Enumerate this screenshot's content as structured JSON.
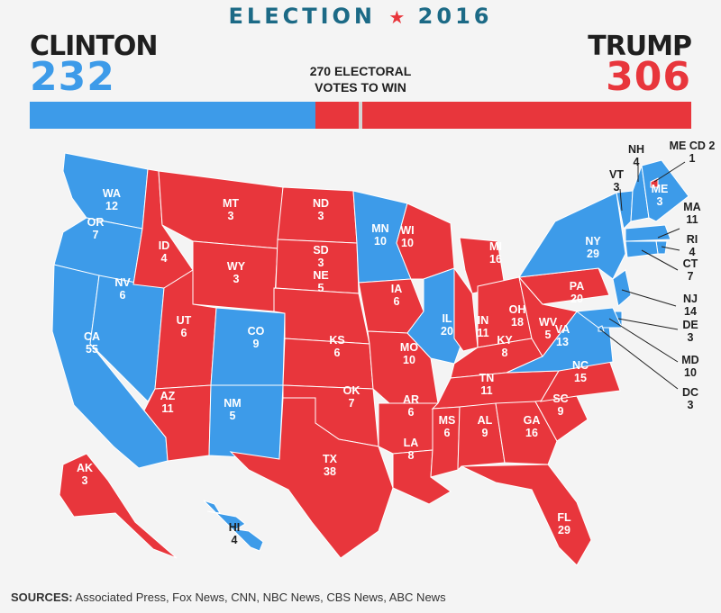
{
  "title": {
    "left": "ELECTION",
    "right": "2016"
  },
  "colors": {
    "dem": "#3d9be9",
    "rep": "#e8363c",
    "title": "#1c6a86",
    "border": "#ffffff"
  },
  "clinton": {
    "name": "CLINTON",
    "votes": "232",
    "ev": 232
  },
  "trump": {
    "name": "TRUMP",
    "votes": "306",
    "ev": 306
  },
  "threshold": {
    "line1": "270 ELECTORAL",
    "line2": "VOTES TO WIN",
    "total": 538
  },
  "sources": {
    "label": "SOURCES:",
    "text": " Associated Press, Fox News, CNN, NBC News, CBS News, ABC News"
  },
  "states": [
    {
      "abbr": "WA",
      "ev": "12",
      "winner": "dem"
    },
    {
      "abbr": "OR",
      "ev": "7",
      "winner": "dem"
    },
    {
      "abbr": "CA",
      "ev": "55",
      "winner": "dem"
    },
    {
      "abbr": "NV",
      "ev": "6",
      "winner": "dem"
    },
    {
      "abbr": "ID",
      "ev": "4",
      "winner": "rep"
    },
    {
      "abbr": "MT",
      "ev": "3",
      "winner": "rep"
    },
    {
      "abbr": "WY",
      "ev": "3",
      "winner": "rep"
    },
    {
      "abbr": "UT",
      "ev": "6",
      "winner": "rep"
    },
    {
      "abbr": "AZ",
      "ev": "11",
      "winner": "rep"
    },
    {
      "abbr": "CO",
      "ev": "9",
      "winner": "dem"
    },
    {
      "abbr": "NM",
      "ev": "5",
      "winner": "dem"
    },
    {
      "abbr": "ND",
      "ev": "3",
      "winner": "rep"
    },
    {
      "abbr": "SD",
      "ev": "3",
      "winner": "rep"
    },
    {
      "abbr": "NE",
      "ev": "5",
      "winner": "rep"
    },
    {
      "abbr": "KS",
      "ev": "6",
      "winner": "rep"
    },
    {
      "abbr": "OK",
      "ev": "7",
      "winner": "rep"
    },
    {
      "abbr": "TX",
      "ev": "38",
      "winner": "rep"
    },
    {
      "abbr": "MN",
      "ev": "10",
      "winner": "dem"
    },
    {
      "abbr": "IA",
      "ev": "6",
      "winner": "rep"
    },
    {
      "abbr": "MO",
      "ev": "10",
      "winner": "rep"
    },
    {
      "abbr": "AR",
      "ev": "6",
      "winner": "rep"
    },
    {
      "abbr": "LA",
      "ev": "8",
      "winner": "rep"
    },
    {
      "abbr": "WI",
      "ev": "10",
      "winner": "rep"
    },
    {
      "abbr": "IL",
      "ev": "20",
      "winner": "dem"
    },
    {
      "abbr": "MI",
      "ev": "16",
      "winner": "rep"
    },
    {
      "abbr": "IN",
      "ev": "11",
      "winner": "rep"
    },
    {
      "abbr": "OH",
      "ev": "18",
      "winner": "rep"
    },
    {
      "abbr": "KY",
      "ev": "8",
      "winner": "rep"
    },
    {
      "abbr": "TN",
      "ev": "11",
      "winner": "rep"
    },
    {
      "abbr": "MS",
      "ev": "6",
      "winner": "rep"
    },
    {
      "abbr": "AL",
      "ev": "9",
      "winner": "rep"
    },
    {
      "abbr": "GA",
      "ev": "16",
      "winner": "rep"
    },
    {
      "abbr": "FL",
      "ev": "29",
      "winner": "rep"
    },
    {
      "abbr": "SC",
      "ev": "9",
      "winner": "rep"
    },
    {
      "abbr": "NC",
      "ev": "15",
      "winner": "rep"
    },
    {
      "abbr": "VA",
      "ev": "13",
      "winner": "dem"
    },
    {
      "abbr": "WV",
      "ev": "5",
      "winner": "rep"
    },
    {
      "abbr": "PA",
      "ev": "20",
      "winner": "rep"
    },
    {
      "abbr": "NY",
      "ev": "29",
      "winner": "dem"
    },
    {
      "abbr": "VT",
      "ev": "3",
      "winner": "dem"
    },
    {
      "abbr": "NH",
      "ev": "4",
      "winner": "dem"
    },
    {
      "abbr": "ME",
      "ev": "3",
      "winner": "dem"
    },
    {
      "abbr": "ME CD 2",
      "ev": "1",
      "winner": "rep"
    },
    {
      "abbr": "MA",
      "ev": "11",
      "winner": "dem"
    },
    {
      "abbr": "RI",
      "ev": "4",
      "winner": "dem"
    },
    {
      "abbr": "CT",
      "ev": "7",
      "winner": "dem"
    },
    {
      "abbr": "NJ",
      "ev": "14",
      "winner": "dem"
    },
    {
      "abbr": "DE",
      "ev": "3",
      "winner": "dem"
    },
    {
      "abbr": "MD",
      "ev": "10",
      "winner": "dem"
    },
    {
      "abbr": "DC",
      "ev": "3",
      "winner": "dem"
    },
    {
      "abbr": "AK",
      "ev": "3",
      "winner": "rep"
    },
    {
      "abbr": "HI",
      "ev": "4",
      "winner": "dem"
    }
  ]
}
